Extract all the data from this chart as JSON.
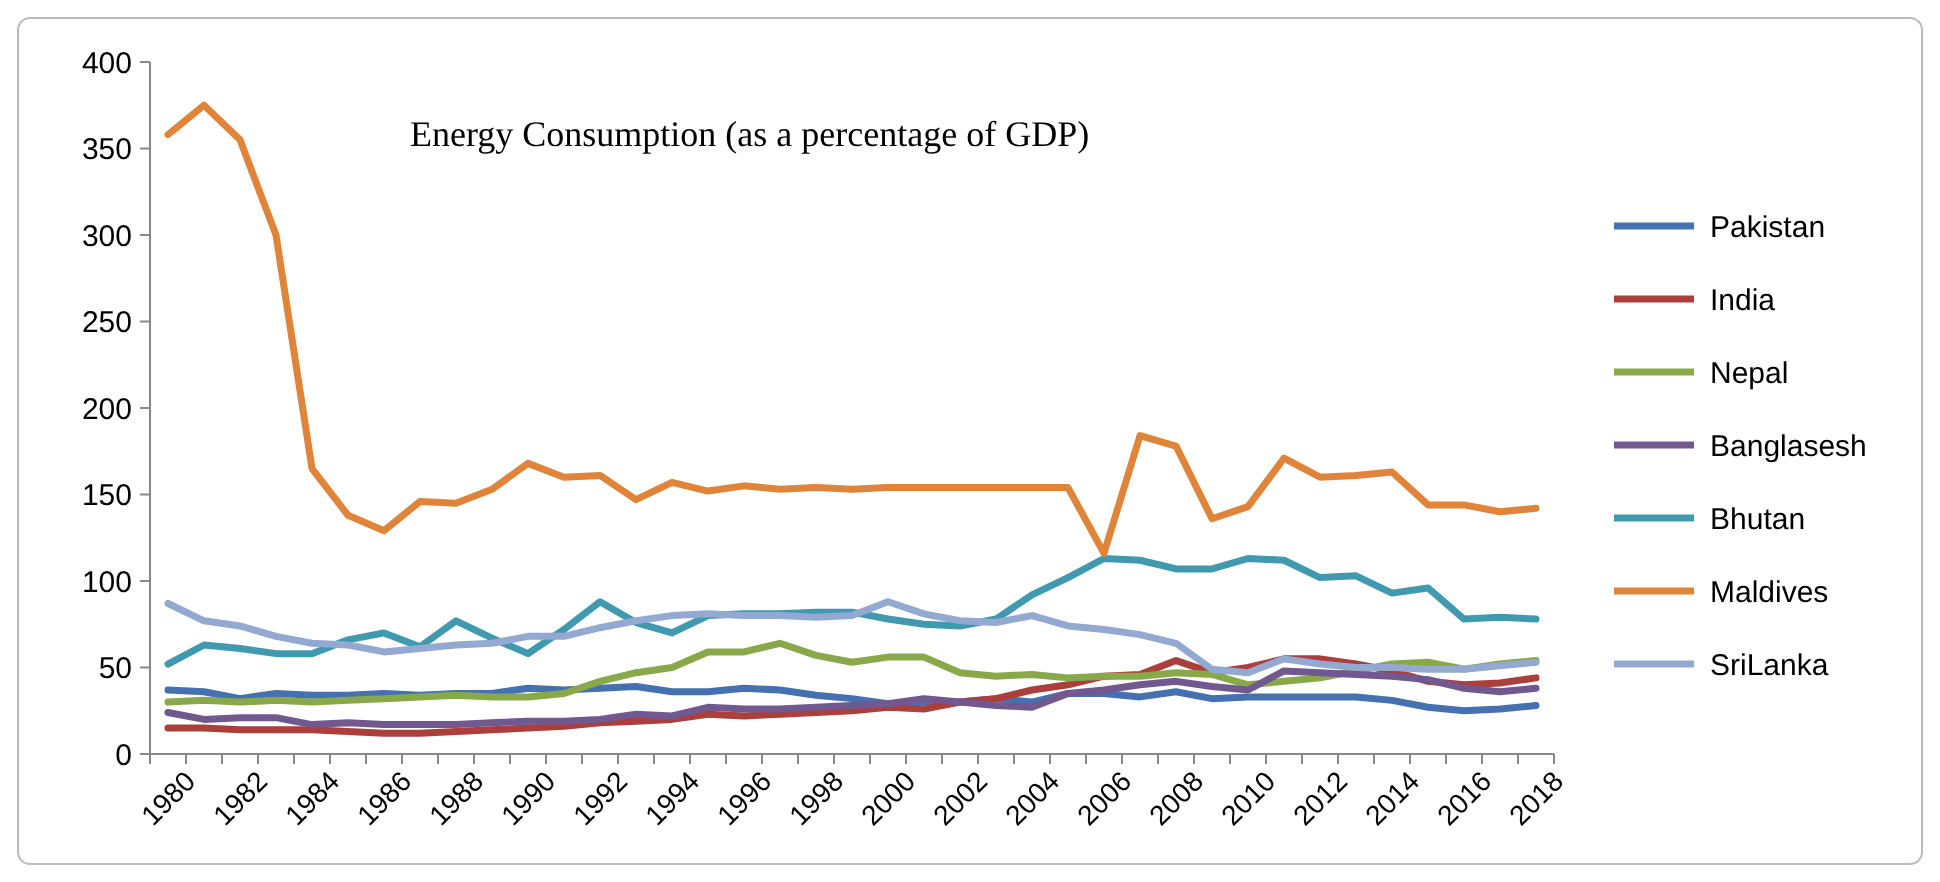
{
  "chart_data": {
    "type": "line",
    "title": "Energy Consumption (as a percentage of GDP)",
    "categories": [
      "1980",
      null,
      "1982",
      null,
      "1984",
      null,
      "1986",
      null,
      "1988",
      null,
      "1990",
      null,
      "1992",
      null,
      "1994",
      null,
      "1996",
      null,
      "1998",
      null,
      "2000",
      null,
      "2002",
      null,
      "2004",
      null,
      "2006",
      null,
      "2008",
      null,
      "2010",
      null,
      "2012",
      null,
      "2014",
      null,
      "2016",
      null,
      "2018"
    ],
    "ylim": [
      0,
      400
    ],
    "yticks": [
      0,
      50,
      100,
      150,
      200,
      250,
      300,
      350,
      400
    ],
    "grid": false,
    "legend": "right",
    "marker": "none",
    "line_style": "solid",
    "series": [
      {
        "name": "Pakistan",
        "color": "#4571b0",
        "values": [
          37,
          36,
          32,
          35,
          34,
          34,
          35,
          34,
          35,
          35,
          38,
          37,
          38,
          39,
          36,
          36,
          38,
          37,
          34,
          32,
          29,
          30,
          30,
          32,
          30,
          35,
          35,
          33,
          36,
          32,
          33,
          33,
          33,
          33,
          31,
          27,
          25,
          26,
          28
        ]
      },
      {
        "name": "India",
        "color": "#aa3f3c",
        "values": [
          15,
          15,
          14,
          14,
          14,
          13,
          12,
          12,
          13,
          14,
          15,
          16,
          18,
          19,
          20,
          23,
          22,
          23,
          24,
          25,
          27,
          26,
          30,
          32,
          37,
          40,
          45,
          46,
          54,
          47,
          50,
          55,
          55,
          52,
          48,
          42,
          40,
          41,
          44
        ]
      },
      {
        "name": "Nepal",
        "color": "#89a84a",
        "values": [
          30,
          31,
          30,
          31,
          30,
          31,
          32,
          33,
          34,
          33,
          33,
          35,
          42,
          47,
          50,
          59,
          59,
          64,
          57,
          53,
          56,
          56,
          47,
          45,
          46,
          44,
          45,
          45,
          47,
          46,
          40,
          42,
          44,
          48,
          52,
          53,
          49,
          52,
          54
        ]
      },
      {
        "name": "Banglasesh",
        "color": "#71588f",
        "values": [
          24,
          20,
          21,
          21,
          17,
          18,
          17,
          17,
          17,
          18,
          19,
          19,
          20,
          23,
          22,
          27,
          26,
          26,
          27,
          28,
          29,
          32,
          30,
          28,
          27,
          35,
          37,
          40,
          42,
          39,
          37,
          48,
          47,
          46,
          45,
          43,
          38,
          36,
          38
        ]
      },
      {
        "name": "Bhutan",
        "color": "#4099ae",
        "values": [
          52,
          63,
          61,
          58,
          58,
          66,
          70,
          62,
          77,
          67,
          58,
          72,
          88,
          76,
          70,
          80,
          81,
          81,
          82,
          82,
          78,
          75,
          74,
          78,
          92,
          102,
          113,
          112,
          107,
          107,
          113,
          112,
          102,
          103,
          93,
          96,
          78,
          79,
          78
        ]
      },
      {
        "name": "Maldives",
        "color": "#e0843a",
        "values": [
          358,
          375,
          355,
          300,
          165,
          138,
          129,
          146,
          145,
          153,
          168,
          160,
          161,
          147,
          157,
          152,
          155,
          153,
          154,
          153,
          154,
          154,
          154,
          154,
          154,
          154,
          116,
          184,
          178,
          136,
          143,
          171,
          160,
          161,
          163,
          144,
          144,
          140,
          142
        ]
      },
      {
        "name": "SriLanka",
        "color": "#93a9d1",
        "values": [
          87,
          77,
          74,
          68,
          64,
          63,
          59,
          61,
          63,
          64,
          68,
          68,
          73,
          77,
          80,
          81,
          80,
          80,
          79,
          80,
          88,
          81,
          77,
          76,
          80,
          74,
          72,
          69,
          64,
          49,
          47,
          55,
          52,
          50,
          50,
          49,
          49,
          51,
          53
        ]
      }
    ]
  }
}
